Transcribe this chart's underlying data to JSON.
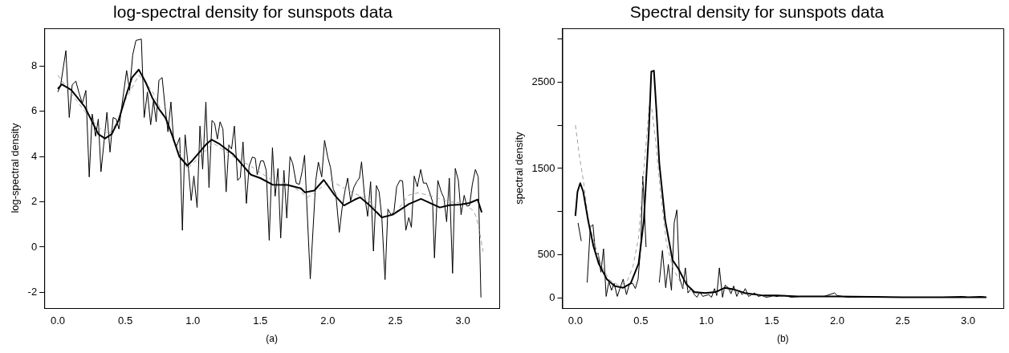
{
  "chart_data": [
    {
      "type": "line",
      "title": "log-spectral density for sunspots data",
      "xlabel": "(a)",
      "ylabel": "log-spectral density",
      "xlim": [
        -0.1,
        3.27
      ],
      "ylim": [
        -2.7,
        9.68
      ],
      "xticks": [
        {
          "value": 0,
          "label": "0.0"
        },
        {
          "value": 0.5,
          "label": "0.5"
        },
        {
          "value": 1,
          "label": "1.0"
        },
        {
          "value": 1.5,
          "label": "1.5"
        },
        {
          "value": 2,
          "label": "2.0"
        },
        {
          "value": 2.5,
          "label": "2.5"
        },
        {
          "value": 3,
          "label": "3.0"
        }
      ],
      "yticks": [
        -2,
        0,
        2,
        4,
        6,
        8
      ],
      "grid": false,
      "legend": false,
      "marker": "none",
      "series": [
        {
          "color": "#000000",
          "line_style": "solid",
          "x": [
            0.0,
            0.03,
            0.1,
            0.2,
            0.25,
            0.3,
            0.35,
            0.4,
            0.45,
            0.5,
            0.55,
            0.6,
            0.65,
            0.7,
            0.75,
            0.8,
            0.85,
            0.9,
            0.96,
            1.0,
            1.05,
            1.1,
            1.14,
            1.2,
            1.3,
            1.43,
            1.5,
            1.59,
            1.7,
            1.8,
            1.83,
            1.9,
            1.97,
            2.05,
            2.12,
            2.2,
            2.24,
            2.3,
            2.4,
            2.48,
            2.6,
            2.69,
            2.83,
            2.9,
            2.98,
            3.05,
            3.11,
            3.14
          ],
          "values": [
            7.0,
            7.2,
            6.95,
            6.2,
            5.6,
            5.0,
            4.8,
            5.0,
            5.6,
            6.6,
            7.5,
            7.85,
            7.3,
            6.6,
            6.1,
            5.7,
            4.9,
            4.0,
            3.6,
            3.85,
            4.2,
            4.55,
            4.75,
            4.55,
            4.1,
            3.2,
            3.05,
            2.76,
            2.75,
            2.6,
            2.42,
            2.5,
            2.97,
            2.3,
            1.84,
            2.1,
            2.2,
            1.9,
            1.31,
            1.43,
            1.9,
            2.13,
            1.75,
            1.85,
            1.88,
            1.95,
            2.1,
            1.53
          ]
        },
        {
          "color": "#a0a0a0",
          "line_style": "dashed",
          "x": [
            0.0,
            0.1,
            0.2,
            0.3,
            0.38,
            0.45,
            0.5,
            0.6,
            0.7,
            0.8,
            0.9,
            0.96,
            1.05,
            1.15,
            1.3,
            1.43,
            1.5,
            1.6,
            1.7,
            1.8,
            1.85,
            1.9,
            2.02,
            2.15,
            2.3,
            2.4,
            2.5,
            2.6,
            2.67,
            2.77,
            2.9,
            3.0,
            3.08,
            3.1,
            3.12,
            3.15
          ],
          "values": [
            7.6,
            6.8,
            6.0,
            5.3,
            5.0,
            5.6,
            6.5,
            7.6,
            6.9,
            5.6,
            4.2,
            3.45,
            4.0,
            4.6,
            4.0,
            3.58,
            3.3,
            2.9,
            2.8,
            2.44,
            2.2,
            2.4,
            2.95,
            2.5,
            2.1,
            1.3,
            1.5,
            2.3,
            2.4,
            2.25,
            2.0,
            1.94,
            1.6,
            1.3,
            0.8,
            -0.2
          ]
        },
        {
          "color": "#000000",
          "line_style": "solid",
          "x": [
            0.0,
            0.02,
            0.06,
            0.085,
            0.107,
            0.134,
            0.158,
            0.182,
            0.208,
            0.233,
            0.255,
            0.28,
            0.3,
            0.32,
            0.344,
            0.364,
            0.387,
            0.41,
            0.433,
            0.453,
            0.474,
            0.51,
            0.532,
            0.555,
            0.579,
            0.619,
            0.64,
            0.664,
            0.688,
            0.709,
            0.729,
            0.749,
            0.773,
            0.794,
            0.816,
            0.838,
            0.858,
            0.879,
            0.903,
            0.923,
            0.943,
            0.968,
            0.988,
            1.008,
            1.032,
            1.053,
            1.073,
            1.097,
            1.12,
            1.142,
            1.162,
            1.182,
            1.202,
            1.223,
            1.247,
            1.267,
            1.287,
            1.308,
            1.332,
            1.352,
            1.372,
            1.397,
            1.417,
            1.441,
            1.463,
            1.477,
            1.503,
            1.524,
            1.544,
            1.566,
            1.59,
            1.61,
            1.631,
            1.651,
            1.675,
            1.696,
            1.72,
            1.74,
            1.766,
            1.789,
            1.81,
            1.828,
            1.87,
            1.911,
            1.93,
            1.955,
            1.976,
            2.0,
            2.02,
            2.04,
            2.06,
            2.085,
            2.105,
            2.126,
            2.147,
            2.169,
            2.192,
            2.214,
            2.234,
            2.25,
            2.27,
            2.295,
            2.317,
            2.338,
            2.36,
            2.38,
            2.4,
            2.424,
            2.445,
            2.468,
            2.49,
            2.51,
            2.534,
            2.554,
            2.578,
            2.6,
            2.619,
            2.64,
            2.663,
            2.688,
            2.708,
            2.73,
            2.753,
            2.776,
            2.79,
            2.815,
            2.84,
            2.86,
            2.88,
            2.9,
            2.924,
            2.944,
            2.967,
            2.987,
            3.01,
            3.03,
            3.05,
            3.07,
            3.093,
            3.114,
            3.134
          ],
          "values": [
            6.86,
            7.12,
            8.69,
            5.73,
            7.18,
            7.34,
            6.8,
            6.36,
            6.93,
            3.1,
            5.88,
            4.9,
            5.66,
            3.33,
            4.74,
            5.96,
            4.2,
            5.73,
            5.66,
            5.22,
            6.23,
            7.81,
            6.93,
            8.5,
            9.14,
            9.2,
            5.73,
            6.86,
            5.41,
            6.48,
            5.54,
            7.37,
            7.5,
            6.23,
            5.1,
            6.42,
            4.7,
            4.46,
            4.84,
            0.74,
            4.97,
            3.45,
            2.06,
            3.14,
            1.75,
            5.35,
            3.45,
            6.42,
            2.63,
            5.6,
            5.47,
            4.78,
            5.54,
            5.22,
            2.44,
            4.52,
            4.34,
            5.35,
            2.95,
            3.08,
            4.65,
            1.93,
            3.58,
            3.98,
            3.93,
            3.2,
            3.81,
            3.81,
            3.39,
            0.3,
            4.4,
            2.25,
            3.48,
            0.4,
            3.39,
            1.28,
            4.0,
            3.7,
            2.83,
            2.77,
            3.35,
            4.06,
            -1.41,
            2.95,
            3.76,
            3.1,
            4.72,
            3.96,
            3.52,
            2.57,
            2.32,
            0.65,
            1.68,
            2.44,
            3.05,
            2.04,
            2.63,
            2.89,
            3.05,
            3.77,
            2.38,
            1.36,
            2.89,
            -0.18,
            2.72,
            2.44,
            1.31,
            -1.44,
            1.68,
            1.43,
            1.56,
            2.67,
            2.95,
            2.92,
            0.74,
            1.31,
            0.87,
            3.14,
            2.67,
            3.43,
            2.83,
            2.83,
            2.44,
            2.0,
            -0.48,
            2.95,
            2.44,
            2.17,
            1.12,
            3.05,
            -1.16,
            3.48,
            2.95,
            1.43,
            2.29,
            1.81,
            1.84,
            2.76,
            3.43,
            3.1,
            -2.23
          ]
        }
      ]
    },
    {
      "type": "line",
      "title": "Spectral density for sunspots data",
      "xlabel": "(b)",
      "ylabel": "spectral density",
      "xlim": [
        -0.1,
        3.27
      ],
      "ylim": [
        -115,
        3121
      ],
      "xticks": [
        {
          "value": 0,
          "label": "0.0"
        },
        {
          "value": 0.5,
          "label": "0.5"
        },
        {
          "value": 1,
          "label": "1.0"
        },
        {
          "value": 1.5,
          "label": "1.5"
        },
        {
          "value": 2,
          "label": "2.0"
        },
        {
          "value": 2.5,
          "label": "2.5"
        },
        {
          "value": 3,
          "label": "3.0"
        }
      ],
      "yticks": [
        0,
        500,
        {
          "value": 1000,
          "label": null
        },
        1500,
        {
          "value": 2000,
          "label": null
        },
        2500,
        {
          "value": 3000,
          "label": null
        }
      ],
      "grid": false,
      "legend": false,
      "marker": "none",
      "series": [
        {
          "color": "#000000",
          "line_style": "solid",
          "x": [
            0.0,
            0.016,
            0.037,
            0.06,
            0.097,
            0.138,
            0.178,
            0.24,
            0.3,
            0.365,
            0.422,
            0.483,
            0.523,
            0.56,
            0.58,
            0.6,
            0.62,
            0.641,
            0.686,
            0.742,
            0.787,
            0.848,
            0.909,
            0.99,
            1.07,
            1.142,
            1.213,
            1.294,
            1.436,
            1.54,
            1.7,
            2.0,
            2.5,
            3.0,
            3.14
          ],
          "values": [
            950,
            1230,
            1330,
            1230,
            900,
            600,
            400,
            220,
            140,
            120,
            170,
            400,
            900,
            1890,
            2620,
            2630,
            2150,
            1560,
            900,
            440,
            340,
            160,
            70,
            60,
            70,
            120,
            100,
            60,
            30,
            30,
            20,
            20,
            10,
            10,
            10
          ]
        },
        {
          "color": "#a0a0a0",
          "line_style": "dashed",
          "x": [
            0.0,
            0.032,
            0.061,
            0.097,
            0.138,
            0.2,
            0.26,
            0.34,
            0.4,
            0.44,
            0.483,
            0.523,
            0.564,
            0.584,
            0.615,
            0.645,
            0.696,
            0.747,
            0.828,
            0.909,
            1.07,
            1.152,
            1.253,
            1.456,
            1.7,
            2.0,
            2.5,
            3.0,
            3.14
          ],
          "values": [
            2000,
            1630,
            1360,
            930,
            670,
            370,
            210,
            140,
            210,
            370,
            700,
            1490,
            2220,
            2190,
            1790,
            1300,
            630,
            340,
            110,
            60,
            60,
            110,
            60,
            20,
            20,
            20,
            10,
            10,
            10
          ]
        },
        {
          "color": "#000000",
          "line_style": "solid",
          "x": [
            0.02,
            0.045,
            0.065,
            0.09,
            0.114,
            0.134,
            0.154,
            0.174,
            0.195,
            0.215,
            0.235,
            0.256,
            0.276,
            0.296,
            0.32,
            0.34,
            0.365,
            0.39,
            0.414,
            0.438,
            0.458,
            0.479,
            0.5,
            0.515,
            0.54,
            0.564,
            0.6,
            0.635,
            0.641,
            0.665,
            0.69,
            0.71,
            0.734,
            0.755,
            0.775,
            0.795,
            0.82,
            0.84,
            0.86,
            0.884,
            0.909,
            0.929,
            0.95,
            0.974,
            0.994,
            1.018,
            1.04,
            1.063,
            1.08,
            1.1,
            1.124,
            1.144,
            1.168,
            1.189,
            1.209,
            1.233,
            1.253,
            1.274,
            1.298,
            1.323,
            1.347,
            1.371,
            1.396,
            1.426,
            1.456,
            1.497,
            1.55,
            1.598,
            1.65,
            1.72,
            1.78,
            1.83,
            1.9,
            1.98,
            2.0,
            2.08,
            2.15,
            2.25,
            2.4,
            2.5,
            2.69,
            2.8,
            2.96,
            3.0,
            3.1,
            3.14
          ],
          "values": [
            870,
            660,
            null,
            180,
            820,
            850,
            510,
            520,
            300,
            570,
            20,
            190,
            90,
            170,
            20,
            110,
            220,
            40,
            170,
            170,
            110,
            220,
            630,
            1410,
            590,
            null,
            null,
            null,
            180,
            550,
            120,
            390,
            90,
            870,
            1020,
            240,
            110,
            350,
            60,
            110,
            40,
            10,
            70,
            20,
            30,
            40,
            10,
            110,
            30,
            350,
            10,
            150,
            120,
            50,
            140,
            20,
            90,
            40,
            110,
            20,
            40,
            60,
            20,
            30,
            10,
            20,
            20,
            30,
            10,
            20,
            20,
            20,
            20,
            60,
            30,
            10,
            10,
            20,
            10,
            10,
            10,
            10,
            20,
            10,
            20,
            10
          ]
        }
      ]
    }
  ]
}
